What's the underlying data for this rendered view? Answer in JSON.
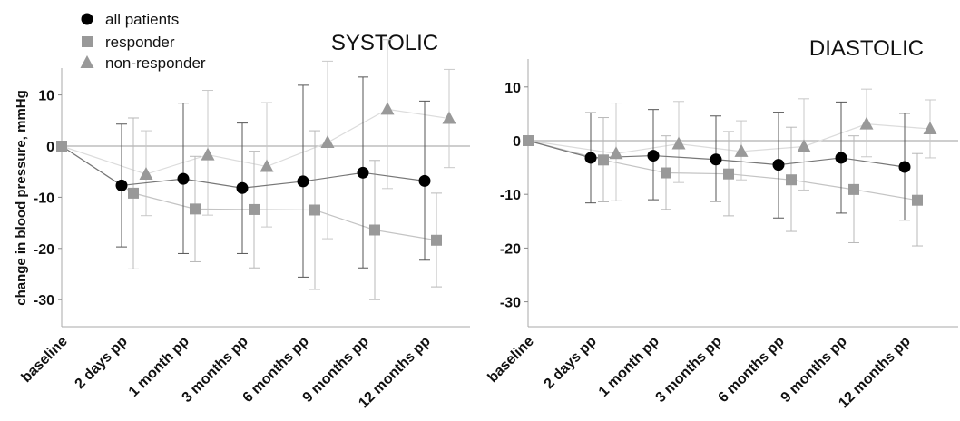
{
  "legend": [
    {
      "label": "all patients",
      "marker": "circle",
      "color": "#000000"
    },
    {
      "label": "responder",
      "marker": "square",
      "color": "#999999"
    },
    {
      "label": "non-responder",
      "marker": "triangle",
      "color": "#999999"
    }
  ],
  "colors": {
    "all": "#000000",
    "responder": "#999999",
    "non_responder": "#999999",
    "reference_line": "#b0b0b0"
  },
  "chart_data": [
    {
      "type": "line",
      "title": "SYSTOLIC",
      "ylabel": "change in blood pressure, mmHg",
      "categories": [
        "baseline",
        "2 days pp",
        "1 month pp",
        "3 months pp",
        "6 months pp",
        "9 months pp",
        "12 months pp"
      ],
      "ylim": [
        -35,
        15
      ],
      "yticks": [
        10,
        0,
        -10,
        -20,
        -30
      ],
      "ytick_labels": [
        "10",
        "0",
        "-10",
        "-20",
        "-30"
      ],
      "reference_line": 0,
      "series": [
        {
          "name": "all patients",
          "marker": "circle",
          "values": [
            0,
            -7.7,
            -6.4,
            -8.2,
            -6.9,
            -5.2,
            -6.8
          ],
          "err_low": [
            null,
            -19.7,
            -21.0,
            -21.0,
            -25.6,
            -23.8,
            -22.3
          ],
          "err_high": [
            null,
            4.3,
            8.4,
            4.5,
            11.9,
            13.5,
            8.8
          ]
        },
        {
          "name": "responder",
          "marker": "square",
          "values": [
            0,
            -9.2,
            -12.3,
            -12.4,
            -12.5,
            -16.4,
            -18.4
          ],
          "err_low": [
            null,
            -24.0,
            -22.6,
            -23.8,
            -28.0,
            -30.0,
            -27.5
          ],
          "err_high": [
            null,
            5.5,
            -2.0,
            -1.0,
            3.0,
            -2.8,
            -9.2
          ]
        },
        {
          "name": "non-responder",
          "marker": "triangle",
          "values": [
            0,
            -5.5,
            -1.7,
            -4.0,
            0.7,
            7.2,
            5.4
          ],
          "err_low": [
            null,
            -13.6,
            -13.5,
            -15.8,
            -18.1,
            -8.3,
            -4.2
          ],
          "err_high": [
            null,
            3.0,
            10.9,
            8.5,
            16.6,
            20.8,
            15.0
          ]
        }
      ]
    },
    {
      "type": "line",
      "title": "DIASTOLIC",
      "ylabel": "",
      "categories": [
        "baseline",
        "2 days pp",
        "1 month pp",
        "3 months pp",
        "6 months pp",
        "9 months pp",
        "12 months pp"
      ],
      "ylim": [
        -35,
        15
      ],
      "yticks": [
        10,
        0,
        -10,
        -20,
        -30
      ],
      "ytick_labels": [
        "10",
        "0",
        "-10",
        "-20",
        "-30"
      ],
      "reference_line": 0,
      "series": [
        {
          "name": "all patients",
          "marker": "circle",
          "values": [
            0,
            -3.2,
            -2.8,
            -3.5,
            -4.5,
            -3.2,
            -4.9
          ],
          "err_low": [
            null,
            -11.6,
            -11.0,
            -11.3,
            -14.4,
            -13.5,
            -14.8
          ],
          "err_high": [
            null,
            5.2,
            5.8,
            4.6,
            5.3,
            7.2,
            5.1
          ]
        },
        {
          "name": "responder",
          "marker": "square",
          "values": [
            0,
            -3.6,
            -6.0,
            -6.2,
            -7.3,
            -9.1,
            -11.1
          ],
          "err_low": [
            null,
            -11.4,
            -12.8,
            -14.0,
            -16.9,
            -19.0,
            -19.6
          ],
          "err_high": [
            null,
            4.3,
            0.9,
            1.7,
            2.5,
            0.9,
            -2.4
          ]
        },
        {
          "name": "non-responder",
          "marker": "triangle",
          "values": [
            0,
            -2.4,
            -0.6,
            -2.0,
            -1.1,
            3.1,
            2.2
          ],
          "err_low": [
            null,
            -11.2,
            -7.8,
            -7.3,
            -9.2,
            -3.0,
            -3.2
          ],
          "err_high": [
            null,
            7.0,
            7.3,
            3.7,
            7.8,
            9.6,
            7.6
          ]
        }
      ]
    }
  ]
}
